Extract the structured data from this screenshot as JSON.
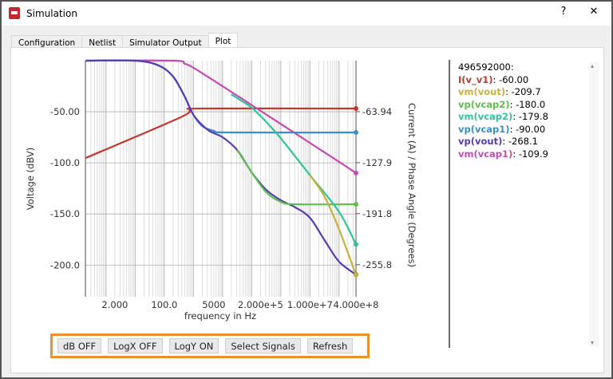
{
  "window": {
    "title": "Simulation",
    "help_label": "?",
    "close_label": "✕",
    "icon": "app-icon"
  },
  "tabs": [
    {
      "label": "Configuration"
    },
    {
      "label": "Netlist"
    },
    {
      "label": "Simulator Output"
    },
    {
      "label": "Plot",
      "active": true
    }
  ],
  "legend": {
    "header": "496592000:",
    "items": [
      {
        "name": "I(v_v1)",
        "value": ": -60.00",
        "color": "#c0392b"
      },
      {
        "name": "vm(vout)",
        "value": ": -209.7",
        "color": "#c8b23a"
      },
      {
        "name": "vp(vcap2)",
        "value": ": -180.0",
        "color": "#5cc04a"
      },
      {
        "name": "vm(vcap2)",
        "value": ": -179.8",
        "color": "#2fc49a"
      },
      {
        "name": "vp(vcap1)",
        "value": ": -90.00",
        "color": "#3a8fc8"
      },
      {
        "name": "vp(vout)",
        "value": ": -268.1",
        "color": "#5a3ab4"
      },
      {
        "name": "vm(vcap1)",
        "value": ": -109.9",
        "color": "#c849b4"
      }
    ]
  },
  "buttons": [
    {
      "label": "dB OFF"
    },
    {
      "label": "LogX OFF"
    },
    {
      "label": "LogY ON"
    },
    {
      "label": "Select Signals"
    },
    {
      "label": "Refresh"
    }
  ],
  "chart_data": {
    "type": "line",
    "xlabel": "frequency in Hz",
    "ylabel_left": "Voltage (dBV)",
    "ylabel_right": "Current (A) / Phase Angle (Degrees)",
    "x_scale": "log",
    "xlim": [
      0.195,
      380000000
    ],
    "ylim_left": [
      -231,
      0
    ],
    "ylim_right": [
      -296,
      0
    ],
    "grid": true,
    "x_ticks": [
      {
        "v": 2,
        "label": "2.000"
      },
      {
        "v": 100,
        "label": "100.0"
      },
      {
        "v": 5000,
        "label": "5000"
      },
      {
        "v": 200000,
        "label": "2.000e+5"
      },
      {
        "v": 10000000,
        "label": "1.000e+7"
      },
      {
        "v": 400000000,
        "label": "4.000e+8"
      }
    ],
    "y_ticks_left": [
      {
        "v": -50,
        "label": "-50.00"
      },
      {
        "v": -100,
        "label": "-100.0"
      },
      {
        "v": -150,
        "label": "-150.0"
      },
      {
        "v": -200,
        "label": "-200.0"
      }
    ],
    "y_ticks_right": [
      {
        "v": -63.94,
        "label": "-63.94"
      },
      {
        "v": -127.9,
        "label": "-127.9"
      },
      {
        "v": -191.8,
        "label": "-191.8"
      },
      {
        "v": -255.8,
        "label": "-255.8"
      }
    ],
    "series": [
      {
        "name": "I(v_v1)",
        "axis": "right",
        "color": "#c0392b",
        "points": [
          [
            0.2,
            -122
          ],
          [
            316,
            -72
          ],
          [
            794,
            -62
          ],
          [
            1995,
            -60
          ],
          [
            380000000,
            -60
          ]
        ]
      },
      {
        "name": "vm(vcap1)",
        "axis": "left",
        "color": "#c849b4",
        "points": [
          [
            0.2,
            0
          ],
          [
            200,
            0
          ],
          [
            500,
            -3
          ],
          [
            1000,
            -7
          ],
          [
            10000,
            -25
          ],
          [
            100000,
            -43.5
          ],
          [
            1000000,
            -62
          ],
          [
            10000000,
            -80.5
          ],
          [
            100000000,
            -99
          ],
          [
            380000000,
            -109.9
          ]
        ]
      },
      {
        "name": "vp(vcap1)",
        "axis": "right",
        "color": "#3a8fc8",
        "points": [
          [
            0.2,
            0
          ],
          [
            10,
            0
          ],
          [
            63,
            -6
          ],
          [
            200,
            -20
          ],
          [
            500,
            -45
          ],
          [
            1000,
            -68
          ],
          [
            1995,
            -82
          ],
          [
            5012,
            -88
          ],
          [
            15849,
            -90
          ],
          [
            380000000,
            -90
          ]
        ]
      },
      {
        "name": "vp(vout)",
        "axis": "right",
        "color": "#5a3ab4",
        "points": [
          [
            0.2,
            0
          ],
          [
            10,
            0
          ],
          [
            63,
            -6
          ],
          [
            200,
            -20
          ],
          [
            500,
            -45
          ],
          [
            1000,
            -68
          ],
          [
            3162,
            -87
          ],
          [
            10000,
            -96
          ],
          [
            31623,
            -112
          ],
          [
            100000,
            -140
          ],
          [
            316228,
            -162
          ],
          [
            1000000,
            -175
          ],
          [
            3162278,
            -184
          ],
          [
            10000000,
            -197
          ],
          [
            31622777,
            -225
          ],
          [
            100000000,
            -252
          ],
          [
            380000000,
            -268.1
          ]
        ]
      },
      {
        "name": "vp(vcap2)",
        "axis": "right",
        "color": "#5cc04a",
        "points": [
          [
            31623,
            -112
          ],
          [
            100000,
            -140
          ],
          [
            316228,
            -165
          ],
          [
            1000000,
            -177
          ],
          [
            3162278,
            -180
          ],
          [
            380000000,
            -180
          ]
        ]
      },
      {
        "name": "vm(vcap2)",
        "axis": "left",
        "color": "#2fc49a",
        "points": [
          [
            19953,
            -33
          ],
          [
            39811,
            -38.5
          ],
          [
            100000,
            -46
          ],
          [
            316228,
            -60
          ],
          [
            1000000,
            -76
          ],
          [
            10000000,
            -112
          ],
          [
            100000000,
            -148
          ],
          [
            380000000,
            -179.8
          ]
        ]
      },
      {
        "name": "vm(vout)",
        "axis": "left",
        "color": "#c8b23a",
        "points": [
          [
            10000000,
            -112
          ],
          [
            31622777,
            -133
          ],
          [
            100000000,
            -165
          ],
          [
            380000000,
            -209.7
          ]
        ]
      }
    ]
  }
}
